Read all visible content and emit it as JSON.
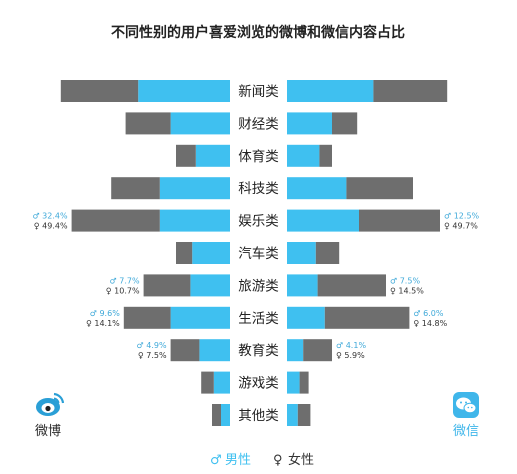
{
  "chart_data": {
    "type": "bar",
    "title": "不同性别的用户喜爱浏览的微博和微信内容占比",
    "categories": [
      "新闻类",
      "财经类",
      "体育类",
      "科技类",
      "娱乐类",
      "汽车类",
      "旅游类",
      "生活类",
      "教育类",
      "游戏类",
      "其他类"
    ],
    "series": [
      {
        "name": "男性",
        "platform": "微博",
        "values": [
          25.5,
          16.5,
          9.5,
          19.5,
          19.5,
          10.5,
          11.0,
          16.5,
          8.5,
          4.5,
          2.5
        ]
      },
      {
        "name": "女性",
        "platform": "微博",
        "values": [
          21.5,
          12.5,
          5.5,
          13.5,
          24.5,
          4.5,
          13.0,
          13.0,
          8.0,
          3.5,
          2.5
        ]
      },
      {
        "name": "男性",
        "platform": "微信",
        "values": [
          24.0,
          12.5,
          9.0,
          16.5,
          20.0,
          8.0,
          8.5,
          10.5,
          4.5,
          3.5,
          3.0
        ]
      },
      {
        "name": "女性",
        "platform": "微信",
        "values": [
          20.5,
          7.0,
          3.5,
          18.5,
          22.5,
          6.5,
          19.0,
          23.5,
          8.0,
          2.5,
          3.5
        ]
      }
    ],
    "annotations": {
      "left": [
        {
          "category": "娱乐类",
          "male": "♂ 32.4%",
          "female": "♀ 49.4%"
        },
        {
          "category": "旅游类",
          "male": "♂ 7.7%",
          "female": "♀ 10.7%"
        },
        {
          "category": "生活类",
          "male": "♂ 9.6%",
          "female": "♀ 14.1%"
        },
        {
          "category": "教育类",
          "male": "♂ 4.9%",
          "female": "♀ 7.5%"
        }
      ],
      "right": [
        {
          "category": "娱乐类",
          "male": "♂ 12.5%",
          "female": "♀ 49.7%"
        },
        {
          "category": "旅游类",
          "male": "♂ 7.5%",
          "female": "♀ 14.5%"
        },
        {
          "category": "生活类",
          "male": "♂ 6.0%",
          "female": "♀ 14.8%"
        },
        {
          "category": "教育类",
          "male": "♂ 4.1%",
          "female": "♀ 5.9%"
        }
      ]
    },
    "platforms": {
      "left": "微博",
      "right": "微信"
    },
    "legend": [
      {
        "symbol": "♂",
        "label": "男性",
        "color": "#3fc0f0"
      },
      {
        "symbol": "♀",
        "label": "女性",
        "color": "#6e6e6e"
      }
    ],
    "legend_position": "bottom-center"
  },
  "colors": {
    "male": "#3fc0f0",
    "female": "#6e6e6e",
    "weibo_icon": "#2a9fd6",
    "wechat_icon": "#3fb6ea"
  },
  "icons": {
    "left": "weibo-logo-icon",
    "right": "wechat-logo-icon"
  }
}
